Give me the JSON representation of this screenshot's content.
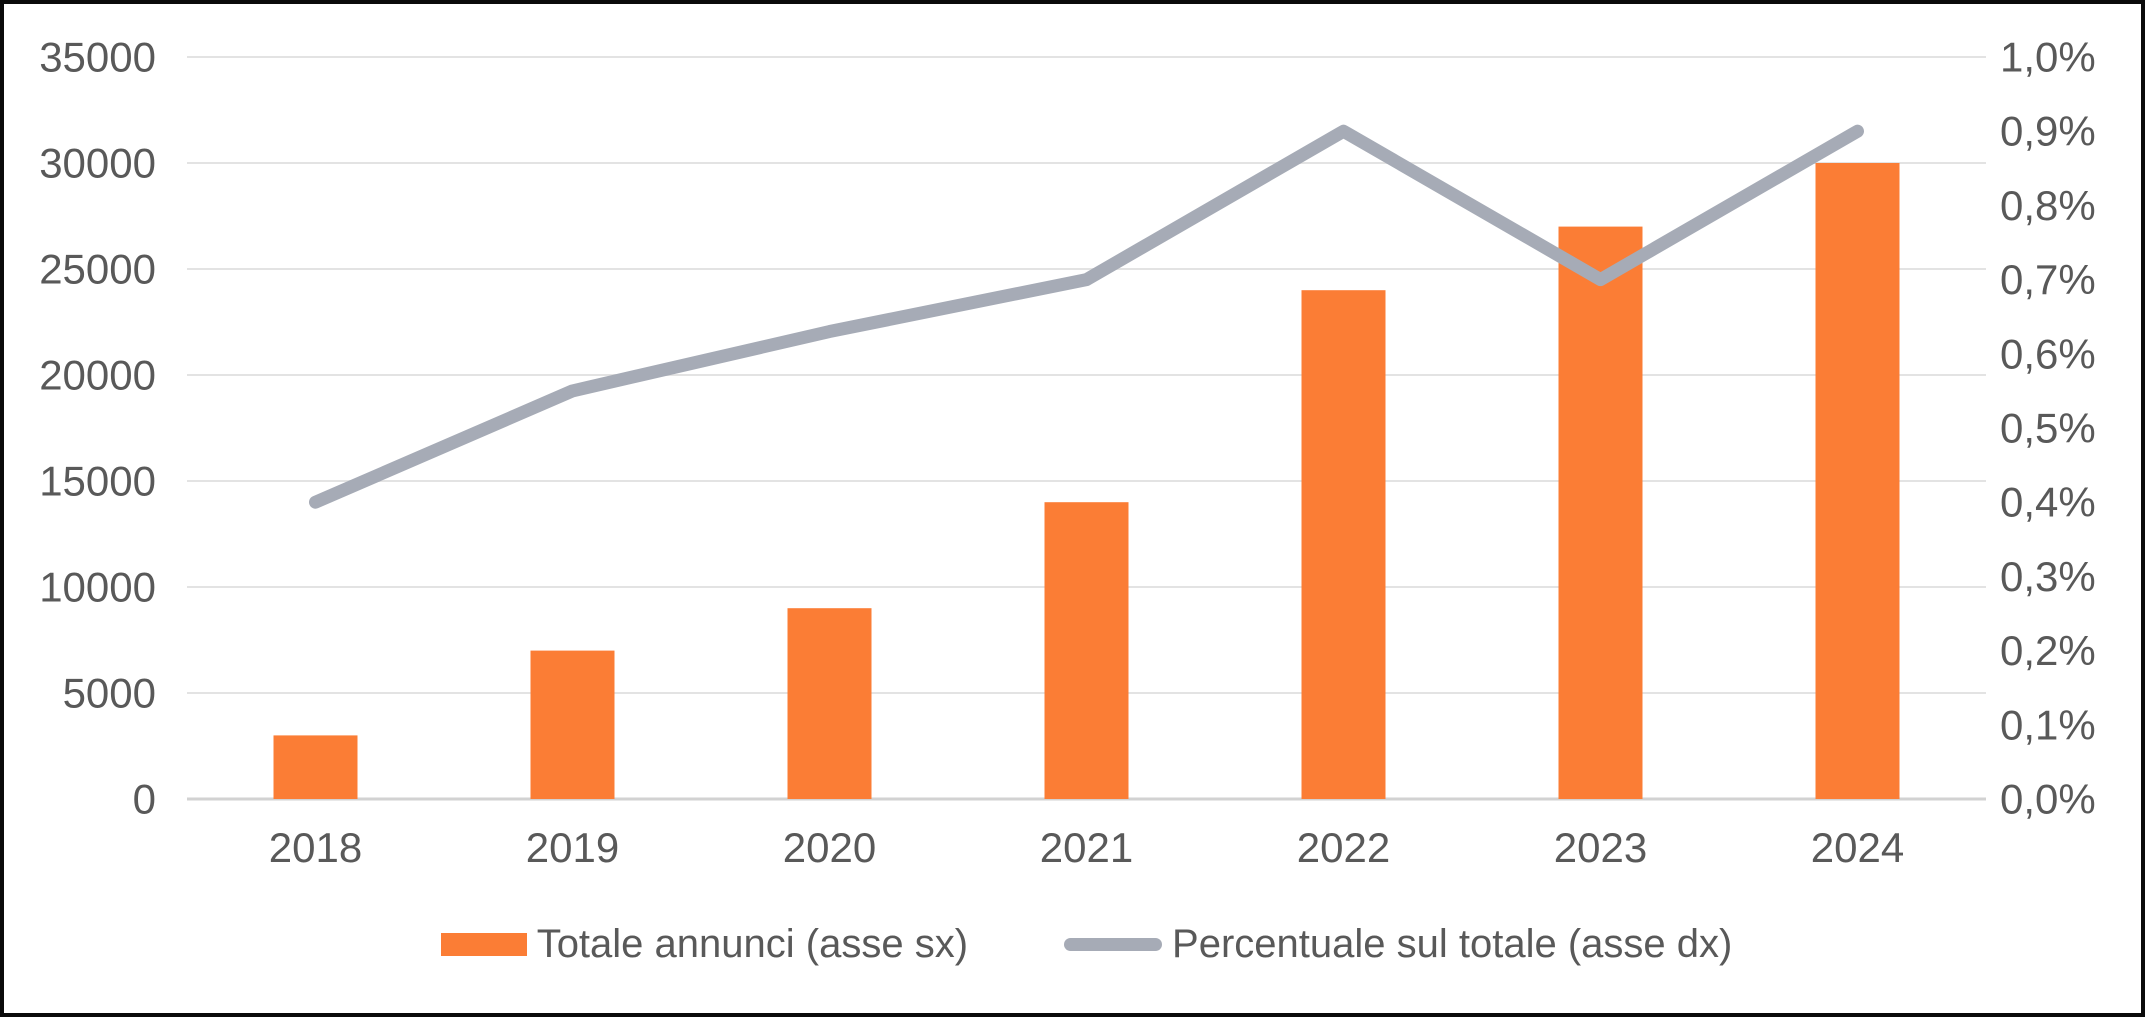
{
  "chart_data": {
    "type": "bar+line combo, dual axis",
    "categories": [
      "2018",
      "2019",
      "2020",
      "2021",
      "2022",
      "2023",
      "2024"
    ],
    "series": [
      {
        "name": "Totale annunci (asse sx)",
        "type": "bar",
        "axis": "left",
        "color": "#FB7D35",
        "values": [
          3000,
          7000,
          9000,
          14000,
          24000,
          27000,
          30000
        ]
      },
      {
        "name": "Percentuale sul totale (asse dx)",
        "type": "line",
        "axis": "right",
        "color": "#A6ABB6",
        "values": [
          0.4,
          0.55,
          0.63,
          0.7,
          0.9,
          0.7,
          0.9
        ]
      }
    ],
    "left_axis": {
      "min": 0,
      "max": 35000,
      "step": 5000,
      "tick_labels": [
        "0",
        "5000",
        "10000",
        "15000",
        "20000",
        "25000",
        "30000",
        "35000"
      ]
    },
    "right_axis": {
      "min": 0.0,
      "max": 1.0,
      "step": 0.1,
      "tick_labels": [
        "0,0%",
        "0,1%",
        "0,2%",
        "0,3%",
        "0,4%",
        "0,5%",
        "0,6%",
        "0,7%",
        "0,8%",
        "0,9%",
        "1,0%"
      ]
    },
    "grid": true,
    "legend_position": "bottom"
  },
  "legend": {
    "item1": "Totale annunci (asse sx)",
    "item2": "Percentuale sul totale (asse dx)"
  },
  "colors": {
    "bar": "#FB7D35",
    "line": "#A6ABB6",
    "gridline": "#E3E3E3",
    "zero_line": "#D2D2D2",
    "tick_text": "#595959",
    "frame": "#0A0A0A",
    "background": "#FFFFFF"
  }
}
